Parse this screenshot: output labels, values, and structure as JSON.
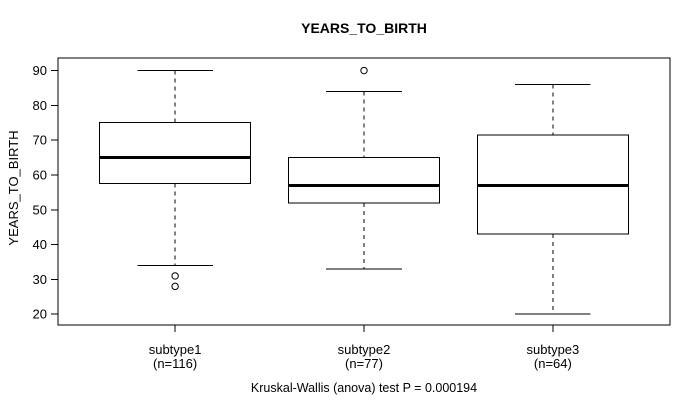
{
  "chart_data": {
    "type": "boxplot",
    "title": "YEARS_TO_BIRTH",
    "ylabel": "YEARS_TO_BIRTH",
    "xlabel": "",
    "annotation": "Kruskal-Wallis (anova) test P = 0.000194",
    "yticks": [
      20,
      30,
      40,
      50,
      60,
      70,
      80,
      90
    ],
    "ylim": [
      16.9,
      93.6
    ],
    "grid": false,
    "legend": null,
    "categories": [
      "subtype1",
      "subtype2",
      "subtype3"
    ],
    "category_sublabels": [
      "(n=116)",
      "(n=77)",
      "(n=64)"
    ],
    "series": [
      {
        "name": "subtype1",
        "n": 116,
        "whisker_low": 34,
        "q1": 57.5,
        "median": 65,
        "q3": 75,
        "whisker_high": 90,
        "outliers": [
          31,
          28
        ]
      },
      {
        "name": "subtype2",
        "n": 77,
        "whisker_low": 33,
        "q1": 52,
        "median": 57,
        "q3": 65,
        "whisker_high": 84,
        "outliers": [
          90
        ]
      },
      {
        "name": "subtype3",
        "n": 64,
        "whisker_low": 20,
        "q1": 43,
        "median": 57,
        "q3": 71.5,
        "whisker_high": 86,
        "outliers": []
      }
    ],
    "colors": {
      "line": "#000000",
      "box_fill": "#ffffff",
      "background": "#ffffff"
    }
  }
}
